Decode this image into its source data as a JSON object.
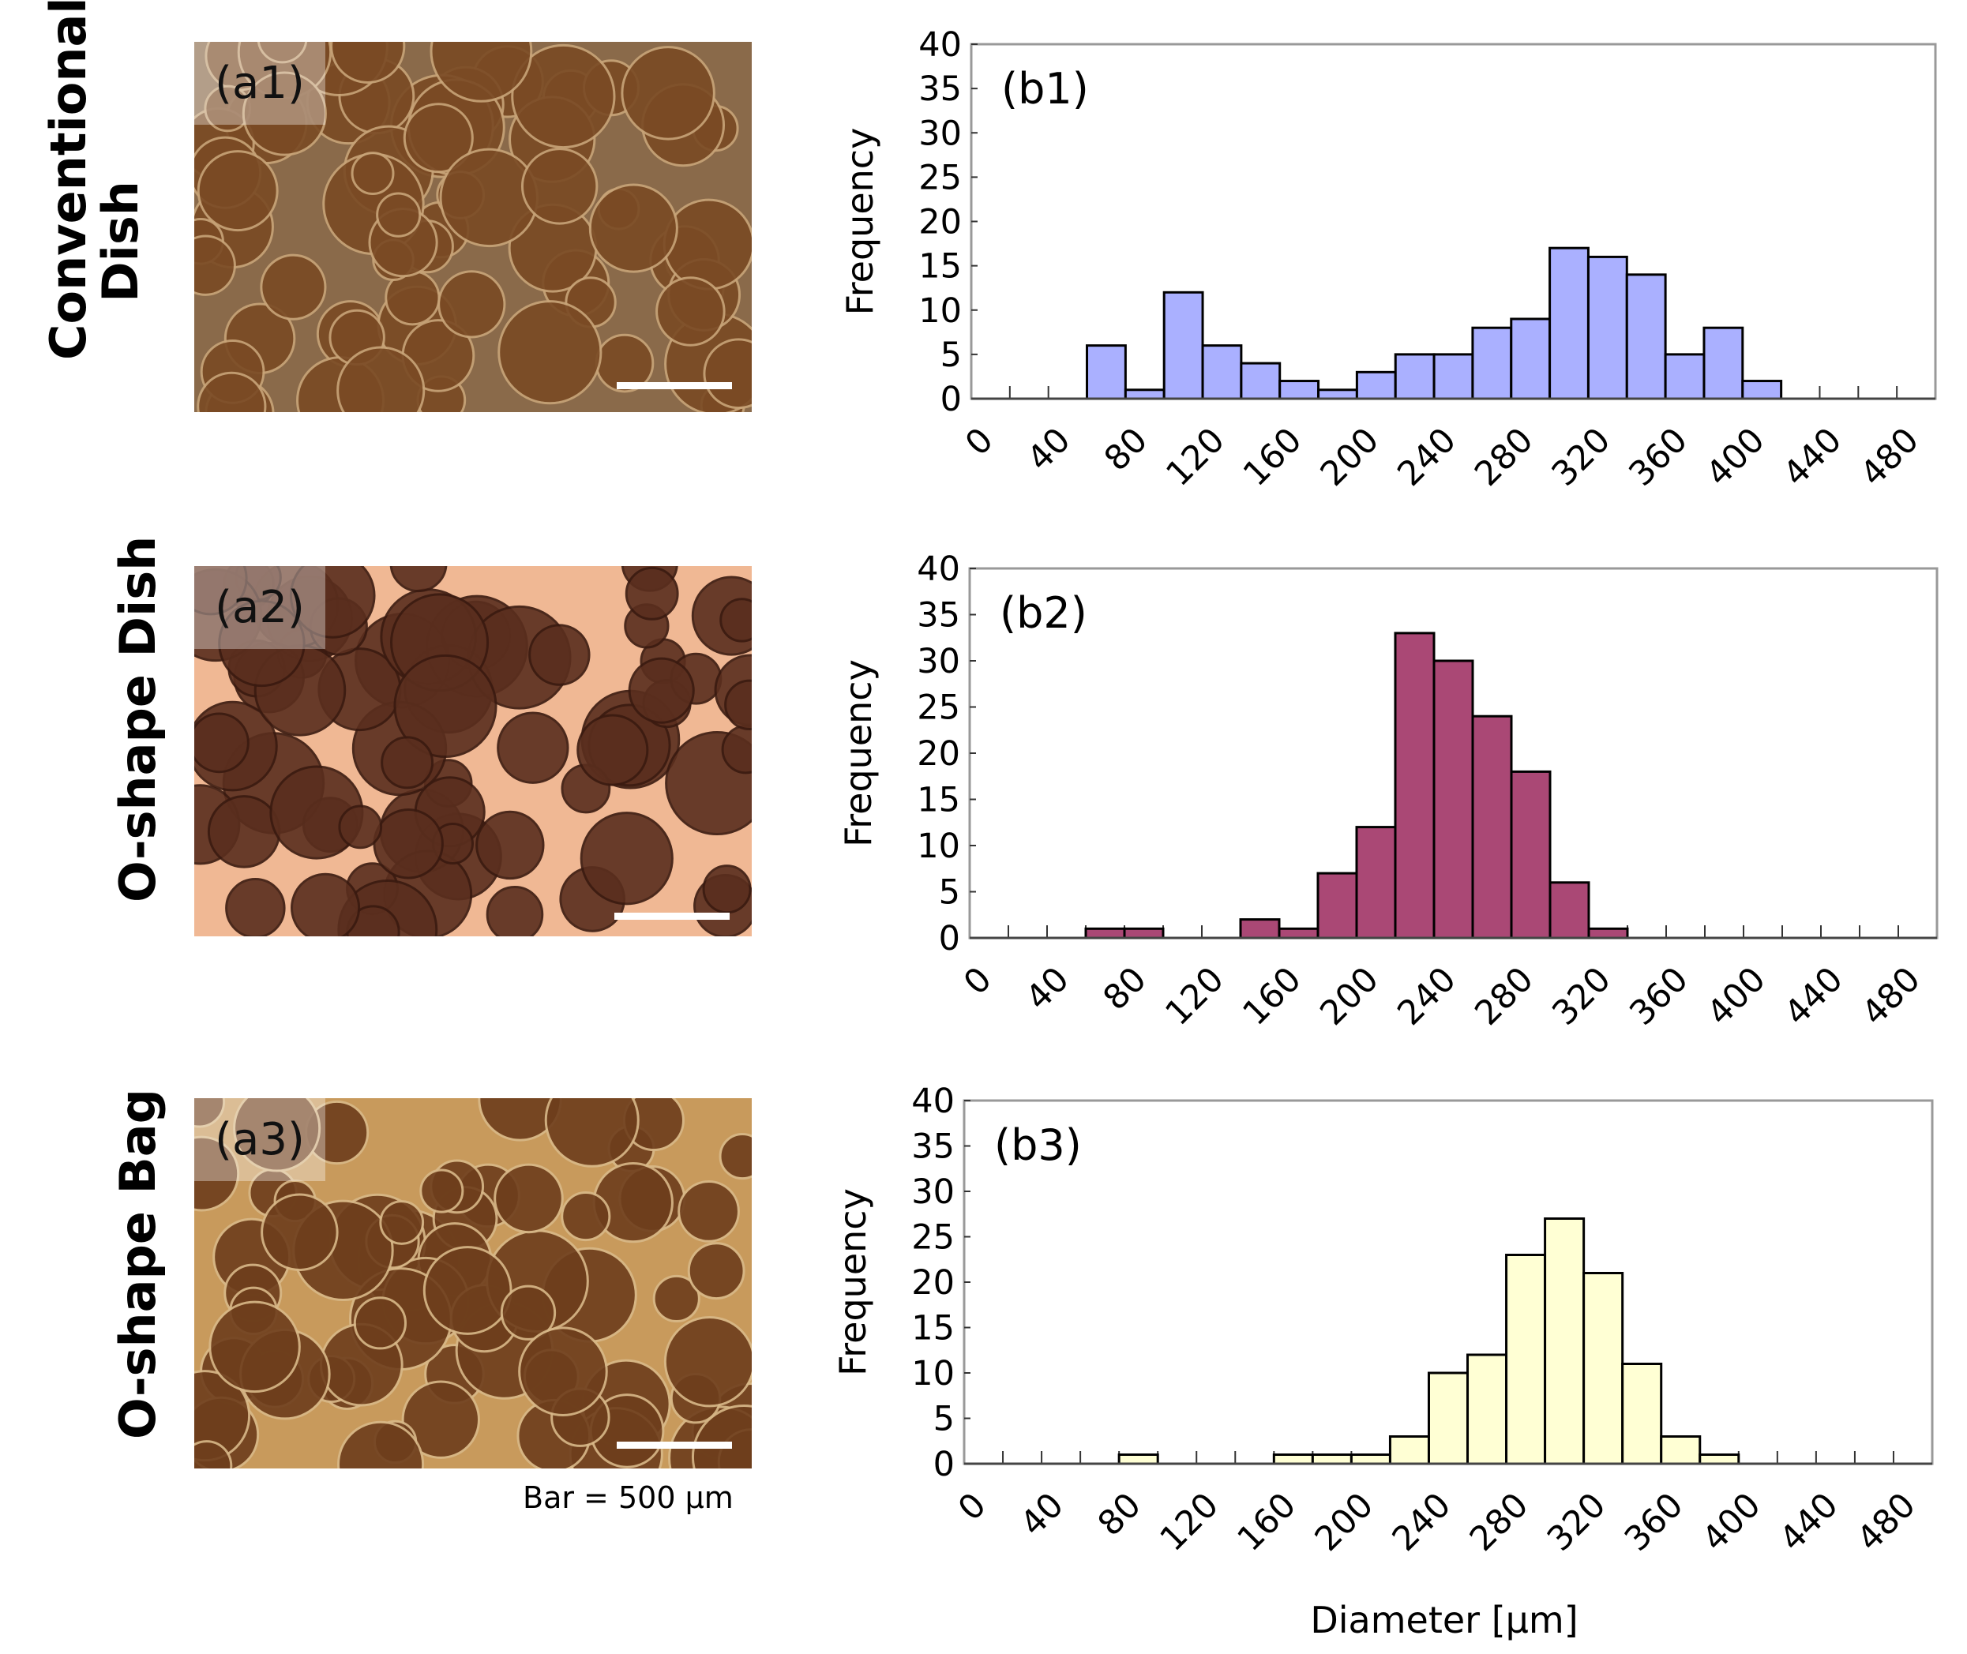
{
  "rows": [
    {
      "label_lines": [
        "Conventional",
        "Dish"
      ],
      "photo_label": "(a1)",
      "photo_tone": {
        "bg": "#8a6a4a",
        "sphere": "#7a4a24",
        "sphere_edge": "#c8a478"
      }
    },
    {
      "label_lines": [
        "O-shape Dish"
      ],
      "photo_label": "(a2)",
      "photo_tone": {
        "bg": "#f0b894",
        "sphere": "#5a2e1e",
        "sphere_edge": "#3a1a10"
      }
    },
    {
      "label_lines": [
        "O-shape Bag"
      ],
      "photo_label": "(a3)",
      "photo_tone": {
        "bg": "#c89a5c",
        "sphere": "#6e3e1c",
        "sphere_edge": "#d8b888"
      }
    }
  ],
  "scale_bar_note": "Bar = 500 µm",
  "chart_data": [
    {
      "type": "bar",
      "panel_label": "(b1)",
      "ylabel": "Frequency",
      "xlabel": "",
      "ylim": [
        0,
        40
      ],
      "yticks": [
        0,
        5,
        10,
        15,
        20,
        25,
        30,
        35,
        40
      ],
      "xlim": [
        0,
        500
      ],
      "xticks": [
        0,
        40,
        80,
        120,
        160,
        200,
        240,
        280,
        320,
        360,
        400,
        440,
        480
      ],
      "bin_width": 20,
      "bar_color": "#aab0ff",
      "bins": [
        60,
        80,
        100,
        120,
        140,
        160,
        180,
        200,
        220,
        240,
        260,
        280,
        300,
        320,
        340,
        360,
        380,
        400
      ],
      "values": [
        6,
        1,
        12,
        6,
        4,
        2,
        1,
        3,
        5,
        5,
        8,
        9,
        17,
        16,
        14,
        5,
        8,
        2
      ]
    },
    {
      "type": "bar",
      "panel_label": "(b2)",
      "ylabel": "Frequency",
      "xlabel": "",
      "ylim": [
        0,
        40
      ],
      "yticks": [
        0,
        5,
        10,
        15,
        20,
        25,
        30,
        35,
        40
      ],
      "xlim": [
        0,
        500
      ],
      "xticks": [
        0,
        40,
        80,
        120,
        160,
        200,
        240,
        280,
        320,
        360,
        400,
        440,
        480
      ],
      "bin_width": 20,
      "bar_color": "#aa4875",
      "bins": [
        60,
        80,
        140,
        160,
        180,
        200,
        220,
        240,
        260,
        280,
        300,
        320
      ],
      "values": [
        1,
        1,
        2,
        1,
        7,
        12,
        33,
        30,
        24,
        18,
        6,
        1
      ]
    },
    {
      "type": "bar",
      "panel_label": "(b3)",
      "ylabel": "Frequency",
      "xlabel": "Diameter [µm]",
      "ylim": [
        0,
        40
      ],
      "yticks": [
        0,
        5,
        10,
        15,
        20,
        25,
        30,
        35,
        40
      ],
      "xlim": [
        0,
        500
      ],
      "xticks": [
        0,
        40,
        80,
        120,
        160,
        200,
        240,
        280,
        320,
        360,
        400,
        440,
        480
      ],
      "bin_width": 20,
      "bar_color": "#ffffd4",
      "bins": [
        80,
        160,
        180,
        200,
        220,
        240,
        260,
        280,
        300,
        320,
        340,
        360,
        380
      ],
      "values": [
        1,
        1,
        1,
        1,
        3,
        10,
        12,
        23,
        27,
        21,
        11,
        3,
        1
      ]
    }
  ]
}
